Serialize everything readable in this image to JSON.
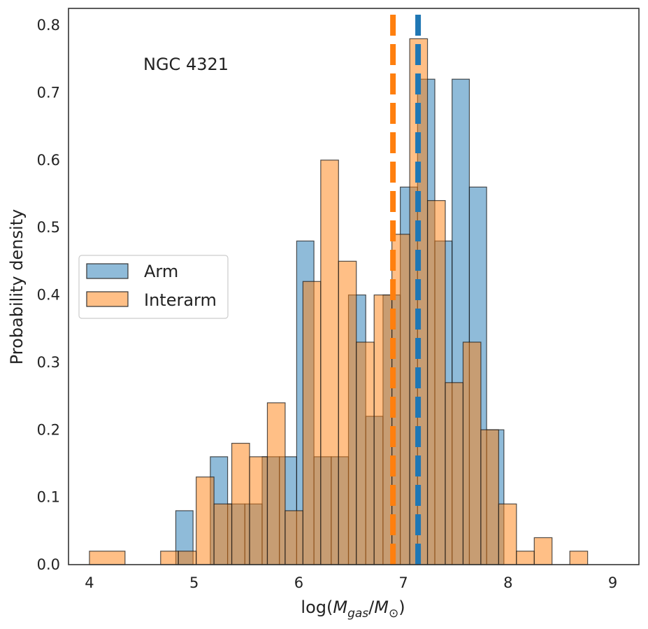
{
  "chart_data": {
    "type": "histogram",
    "annotation": "NGC 4321",
    "xlabel": "log(M_gas/M_sun)",
    "xlabel_parts": {
      "prefix": "log(",
      "m1": "M",
      "sub1": "gas",
      "slash": "/",
      "m2": "M",
      "sub2": "⊙",
      "suffix": ")"
    },
    "ylabel": "Probability density",
    "xlim": [
      3.8,
      9.25
    ],
    "ylim": [
      0,
      0.825
    ],
    "xticks": [
      4,
      5,
      6,
      7,
      8,
      9
    ],
    "xtick_labels": [
      "4",
      "5",
      "6",
      "7",
      "8",
      "9"
    ],
    "yticks": [
      0.0,
      0.1,
      0.2,
      0.3,
      0.4,
      0.5,
      0.6,
      0.7,
      0.8
    ],
    "ytick_labels": [
      "0.0",
      "0.1",
      "0.2",
      "0.3",
      "0.4",
      "0.5",
      "0.6",
      "0.7",
      "0.8"
    ],
    "legend": {
      "location": "center-left",
      "entries": [
        "Arm",
        "Interarm"
      ]
    },
    "series": [
      {
        "name": "Arm",
        "color": "#1f77b4",
        "median_line": 7.14,
        "bins": [
          4.0,
          4.165,
          4.33,
          4.495,
          4.66,
          4.825,
          4.99,
          5.155,
          5.32,
          5.485,
          5.65,
          5.815,
          5.98,
          6.145,
          6.31,
          6.475,
          6.64,
          6.805,
          6.97,
          7.135,
          7.3,
          7.465,
          7.63,
          7.795,
          7.96
        ],
        "values": [
          0,
          0,
          0,
          0,
          0,
          0.08,
          0,
          0.16,
          0.09,
          0.09,
          0.16,
          0.16,
          0.48,
          0.16,
          0.16,
          0.4,
          0.22,
          0.4,
          0.56,
          0.72,
          0.48,
          0.72,
          0.56,
          0.2
        ]
      },
      {
        "name": "Interarm",
        "color": "#ff7f0e",
        "median_line": 6.9,
        "bins": [
          4.0,
          4.34,
          4.68,
          4.85,
          5.02,
          5.19,
          5.36,
          5.53,
          5.7,
          5.87,
          6.04,
          6.21,
          6.38,
          6.55,
          6.72,
          6.89,
          7.06,
          7.23,
          7.4,
          7.57,
          7.74,
          7.91,
          8.08,
          8.25,
          8.42,
          8.59,
          8.76,
          8.93,
          9.0
        ],
        "values": [
          0.02,
          0,
          0.02,
          0.02,
          0.13,
          0.09,
          0.18,
          0.16,
          0.24,
          0.08,
          0.42,
          0.6,
          0.45,
          0.33,
          0.4,
          0.49,
          0.78,
          0.54,
          0.27,
          0.33,
          0.2,
          0.09,
          0.02,
          0.04,
          0,
          0.02,
          0,
          0
        ]
      }
    ]
  }
}
